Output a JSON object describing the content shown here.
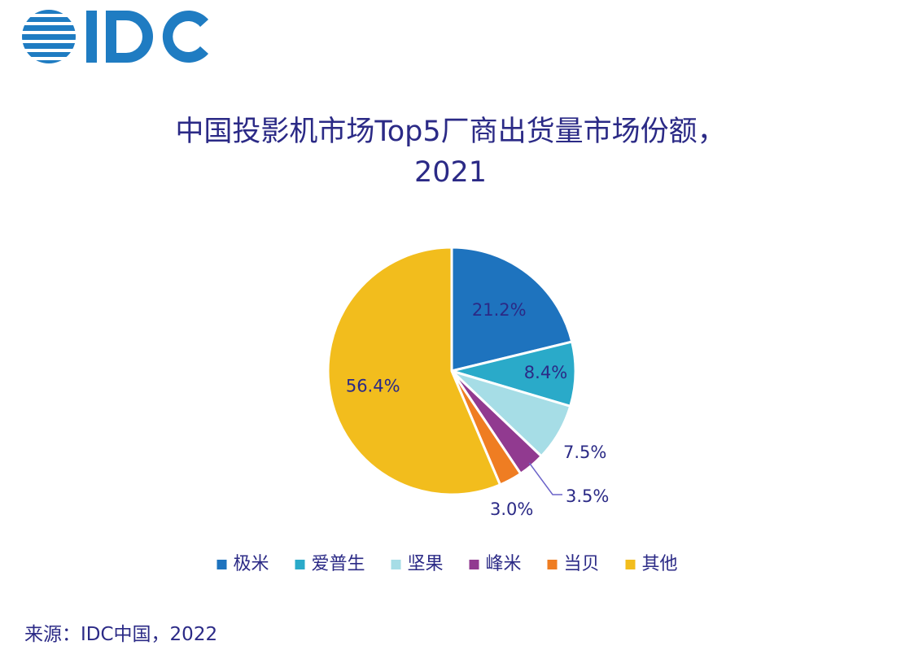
{
  "brand": {
    "logo_text": "IDC",
    "logo_color": "#1f7cc2"
  },
  "chart_data": {
    "type": "pie",
    "title_line1": "中国投影机市场Top5厂商出货量市场份额，",
    "title_line2": "2021",
    "slices": [
      {
        "name": "极米",
        "value": 21.2,
        "label": "21.2%",
        "color": "#1e73be"
      },
      {
        "name": "爱普生",
        "value": 8.4,
        "label": "8.4%",
        "color": "#2aaac9"
      },
      {
        "name": "坚果",
        "value": 7.5,
        "label": "7.5%",
        "color": "#a6dde6"
      },
      {
        "name": "峰米",
        "value": 3.5,
        "label": "3.5%",
        "color": "#913a90"
      },
      {
        "name": "当贝",
        "value": 3.0,
        "label": "3.0%",
        "color": "#ef7d22"
      },
      {
        "name": "其他",
        "value": 56.4,
        "label": "56.4%",
        "color": "#f2bd1d"
      }
    ],
    "legend_position": "bottom"
  },
  "footer": {
    "source": "来源：IDC中国，2022"
  }
}
